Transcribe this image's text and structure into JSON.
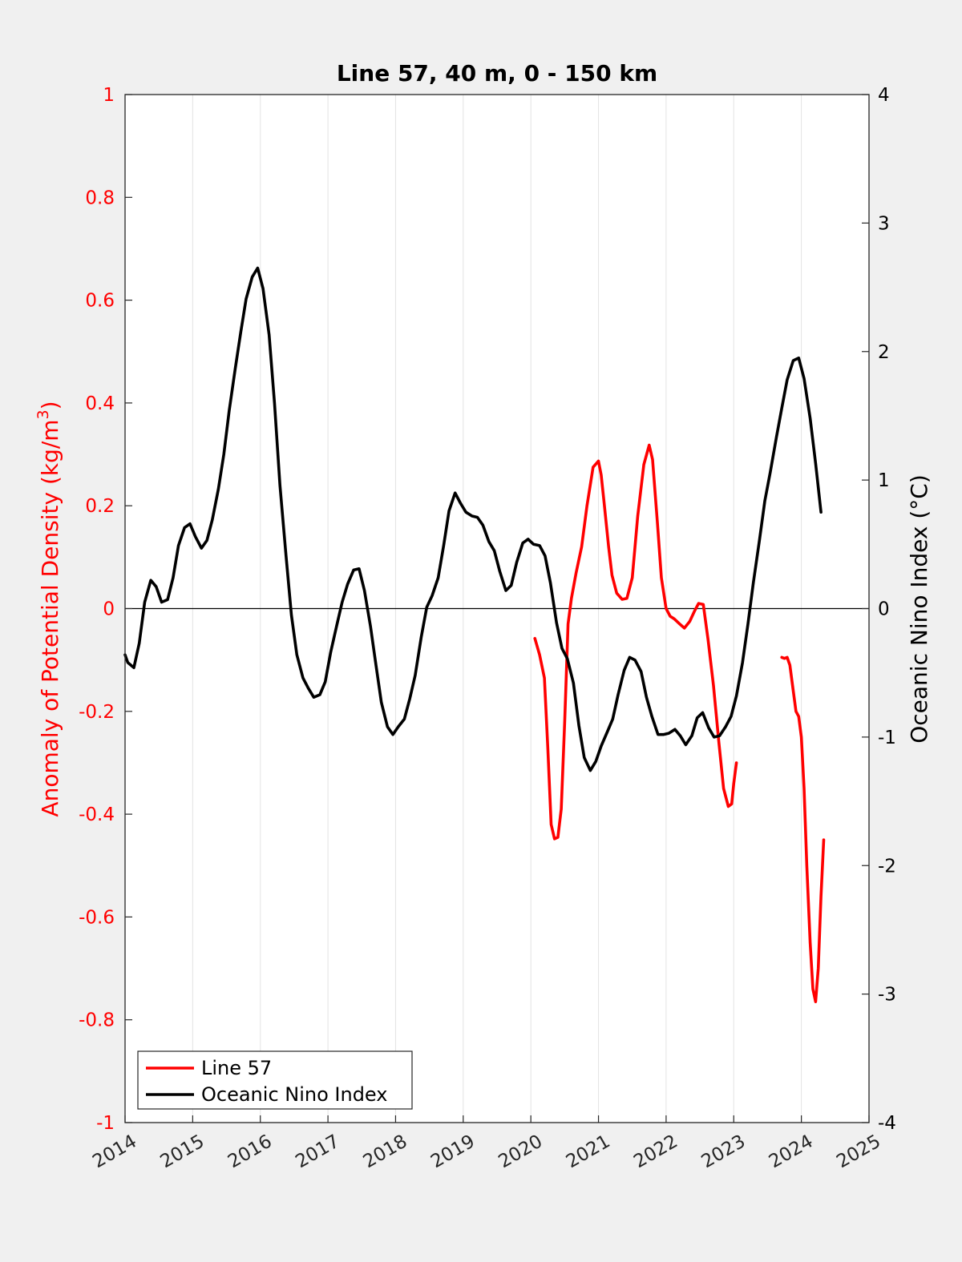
{
  "chart_data": {
    "type": "line",
    "title": "Line 57, 40 m, 0 - 150 km",
    "xlabel": "",
    "ylabel_left": "Anomaly of Potential Density (kg/m",
    "ylabel_left_sup": "3",
    "ylabel_left_close": ")",
    "ylabel_right": "Oceanic Nino Index (°C)",
    "xlim": [
      2014,
      2025
    ],
    "ylim_left": [
      -1,
      1
    ],
    "ylim_right": [
      -4,
      4
    ],
    "x_ticks": [
      "2014",
      "2015",
      "2016",
      "2017",
      "2018",
      "2019",
      "2020",
      "2021",
      "2022",
      "2023",
      "2024",
      "2025"
    ],
    "y_left_ticks": [
      "1",
      "0.8",
      "0.6",
      "0.4",
      "0.2",
      "0",
      "-0.2",
      "-0.4",
      "-0.6",
      "-0.8",
      "-1"
    ],
    "y_right_ticks": [
      "4",
      "3",
      "2",
      "1",
      "0",
      "-1",
      "-2",
      "-3",
      "-4"
    ],
    "grid": "vertical",
    "zero_line": true,
    "legend_position": "bottom-left",
    "colors": {
      "line57": "#ff0000",
      "oni": "#000000",
      "left_axis": "#ff0000",
      "right_axis": "#000000"
    },
    "series": [
      {
        "name": "Line 57",
        "axis": "left",
        "segments": [
          [
            [
              2020.06,
              -0.058
            ],
            [
              2020.13,
              -0.09
            ],
            [
              2020.2,
              -0.135
            ],
            [
              2020.25,
              -0.27
            ],
            [
              2020.3,
              -0.42
            ],
            [
              2020.35,
              -0.448
            ],
            [
              2020.4,
              -0.445
            ],
            [
              2020.45,
              -0.39
            ],
            [
              2020.5,
              -0.22
            ],
            [
              2020.55,
              -0.03
            ],
            [
              2020.6,
              0.02
            ],
            [
              2020.67,
              0.07
            ],
            [
              2020.75,
              0.12
            ],
            [
              2020.83,
              0.2
            ],
            [
              2020.92,
              0.275
            ],
            [
              2021.0,
              0.287
            ],
            [
              2021.04,
              0.26
            ],
            [
              2021.08,
              0.21
            ],
            [
              2021.15,
              0.12
            ],
            [
              2021.2,
              0.065
            ],
            [
              2021.27,
              0.03
            ],
            [
              2021.35,
              0.018
            ],
            [
              2021.42,
              0.02
            ],
            [
              2021.5,
              0.06
            ],
            [
              2021.58,
              0.18
            ],
            [
              2021.67,
              0.28
            ],
            [
              2021.75,
              0.318
            ],
            [
              2021.8,
              0.29
            ],
            [
              2021.87,
              0.17
            ],
            [
              2021.93,
              0.06
            ],
            [
              2022.0,
              0.0
            ],
            [
              2022.06,
              -0.015
            ],
            [
              2022.12,
              -0.02
            ],
            [
              2022.2,
              -0.03
            ],
            [
              2022.27,
              -0.038
            ],
            [
              2022.35,
              -0.025
            ],
            [
              2022.42,
              -0.005
            ],
            [
              2022.48,
              0.01
            ],
            [
              2022.55,
              0.008
            ],
            [
              2022.62,
              -0.06
            ],
            [
              2022.7,
              -0.15
            ],
            [
              2022.78,
              -0.26
            ],
            [
              2022.85,
              -0.35
            ],
            [
              2022.92,
              -0.385
            ],
            [
              2022.97,
              -0.38
            ],
            [
              2023.0,
              -0.34
            ],
            [
              2023.04,
              -0.3
            ]
          ],
          [
            [
              2023.71,
              -0.095
            ],
            [
              2023.75,
              -0.097
            ],
            [
              2023.79,
              -0.095
            ],
            [
              2023.83,
              -0.11
            ],
            [
              2023.88,
              -0.16
            ],
            [
              2023.92,
              -0.2
            ],
            [
              2023.96,
              -0.21
            ],
            [
              2024.0,
              -0.25
            ],
            [
              2024.04,
              -0.35
            ],
            [
              2024.08,
              -0.5
            ],
            [
              2024.13,
              -0.65
            ],
            [
              2024.17,
              -0.74
            ],
            [
              2024.21,
              -0.765
            ],
            [
              2024.25,
              -0.7
            ],
            [
              2024.29,
              -0.56
            ],
            [
              2024.33,
              -0.45
            ]
          ]
        ]
      },
      {
        "name": "Oceanic Nino Index",
        "axis": "right",
        "segments": [
          [
            [
              2014.0,
              -0.36
            ],
            [
              2014.04,
              -0.42
            ],
            [
              2014.13,
              -0.46
            ],
            [
              2014.21,
              -0.27
            ],
            [
              2014.29,
              0.05
            ],
            [
              2014.38,
              0.22
            ],
            [
              2014.46,
              0.17
            ],
            [
              2014.54,
              0.05
            ],
            [
              2014.63,
              0.07
            ],
            [
              2014.71,
              0.24
            ],
            [
              2014.79,
              0.49
            ],
            [
              2014.88,
              0.63
            ],
            [
              2014.96,
              0.66
            ],
            [
              2015.04,
              0.56
            ],
            [
              2015.13,
              0.47
            ],
            [
              2015.21,
              0.53
            ],
            [
              2015.29,
              0.69
            ],
            [
              2015.38,
              0.93
            ],
            [
              2015.46,
              1.2
            ],
            [
              2015.54,
              1.54
            ],
            [
              2015.63,
              1.87
            ],
            [
              2015.71,
              2.15
            ],
            [
              2015.79,
              2.41
            ],
            [
              2015.88,
              2.58
            ],
            [
              2015.96,
              2.65
            ],
            [
              2016.04,
              2.49
            ],
            [
              2016.13,
              2.13
            ],
            [
              2016.21,
              1.6
            ],
            [
              2016.29,
              0.96
            ],
            [
              2016.38,
              0.41
            ],
            [
              2016.46,
              -0.05
            ],
            [
              2016.54,
              -0.36
            ],
            [
              2016.63,
              -0.54
            ],
            [
              2016.71,
              -0.62
            ],
            [
              2016.79,
              -0.69
            ],
            [
              2016.88,
              -0.67
            ],
            [
              2016.96,
              -0.57
            ],
            [
              2017.04,
              -0.34
            ],
            [
              2017.13,
              -0.13
            ],
            [
              2017.21,
              0.05
            ],
            [
              2017.29,
              0.19
            ],
            [
              2017.38,
              0.3
            ],
            [
              2017.46,
              0.31
            ],
            [
              2017.54,
              0.14
            ],
            [
              2017.63,
              -0.14
            ],
            [
              2017.71,
              -0.44
            ],
            [
              2017.79,
              -0.73
            ],
            [
              2017.88,
              -0.92
            ],
            [
              2017.96,
              -0.98
            ],
            [
              2018.04,
              -0.92
            ],
            [
              2018.13,
              -0.86
            ],
            [
              2018.21,
              -0.7
            ],
            [
              2018.29,
              -0.52
            ],
            [
              2018.38,
              -0.22
            ],
            [
              2018.46,
              0.01
            ],
            [
              2018.54,
              0.1
            ],
            [
              2018.63,
              0.24
            ],
            [
              2018.71,
              0.49
            ],
            [
              2018.79,
              0.76
            ],
            [
              2018.88,
              0.9
            ],
            [
              2018.96,
              0.82
            ],
            [
              2019.04,
              0.75
            ],
            [
              2019.13,
              0.72
            ],
            [
              2019.21,
              0.71
            ],
            [
              2019.29,
              0.65
            ],
            [
              2019.38,
              0.52
            ],
            [
              2019.46,
              0.45
            ],
            [
              2019.54,
              0.29
            ],
            [
              2019.63,
              0.14
            ],
            [
              2019.71,
              0.18
            ],
            [
              2019.79,
              0.36
            ],
            [
              2019.88,
              0.51
            ],
            [
              2019.96,
              0.54
            ],
            [
              2020.04,
              0.5
            ],
            [
              2020.13,
              0.49
            ],
            [
              2020.21,
              0.41
            ],
            [
              2020.29,
              0.2
            ],
            [
              2020.38,
              -0.11
            ],
            [
              2020.46,
              -0.31
            ],
            [
              2020.54,
              -0.39
            ],
            [
              2020.63,
              -0.58
            ],
            [
              2020.71,
              -0.91
            ],
            [
              2020.79,
              -1.16
            ],
            [
              2020.88,
              -1.26
            ],
            [
              2020.96,
              -1.19
            ],
            [
              2021.04,
              -1.07
            ],
            [
              2021.13,
              -0.96
            ],
            [
              2021.21,
              -0.86
            ],
            [
              2021.29,
              -0.67
            ],
            [
              2021.38,
              -0.48
            ],
            [
              2021.46,
              -0.38
            ],
            [
              2021.54,
              -0.4
            ],
            [
              2021.63,
              -0.49
            ],
            [
              2021.71,
              -0.69
            ],
            [
              2021.79,
              -0.84
            ],
            [
              2021.88,
              -0.98
            ],
            [
              2021.96,
              -0.98
            ],
            [
              2022.04,
              -0.97
            ],
            [
              2022.13,
              -0.94
            ],
            [
              2022.21,
              -0.99
            ],
            [
              2022.29,
              -1.06
            ],
            [
              2022.38,
              -0.99
            ],
            [
              2022.46,
              -0.85
            ],
            [
              2022.54,
              -0.81
            ],
            [
              2022.63,
              -0.93
            ],
            [
              2022.71,
              -1.0
            ],
            [
              2022.79,
              -0.99
            ],
            [
              2022.88,
              -0.92
            ],
            [
              2022.96,
              -0.84
            ],
            [
              2023.04,
              -0.68
            ],
            [
              2023.13,
              -0.42
            ],
            [
              2023.21,
              -0.12
            ],
            [
              2023.29,
              0.2
            ],
            [
              2023.38,
              0.53
            ],
            [
              2023.46,
              0.84
            ],
            [
              2023.54,
              1.06
            ],
            [
              2023.63,
              1.33
            ],
            [
              2023.71,
              1.56
            ],
            [
              2023.79,
              1.78
            ],
            [
              2023.88,
              1.93
            ],
            [
              2023.96,
              1.95
            ],
            [
              2024.04,
              1.79
            ],
            [
              2024.13,
              1.48
            ],
            [
              2024.21,
              1.13
            ],
            [
              2024.29,
              0.75
            ]
          ]
        ]
      }
    ]
  }
}
